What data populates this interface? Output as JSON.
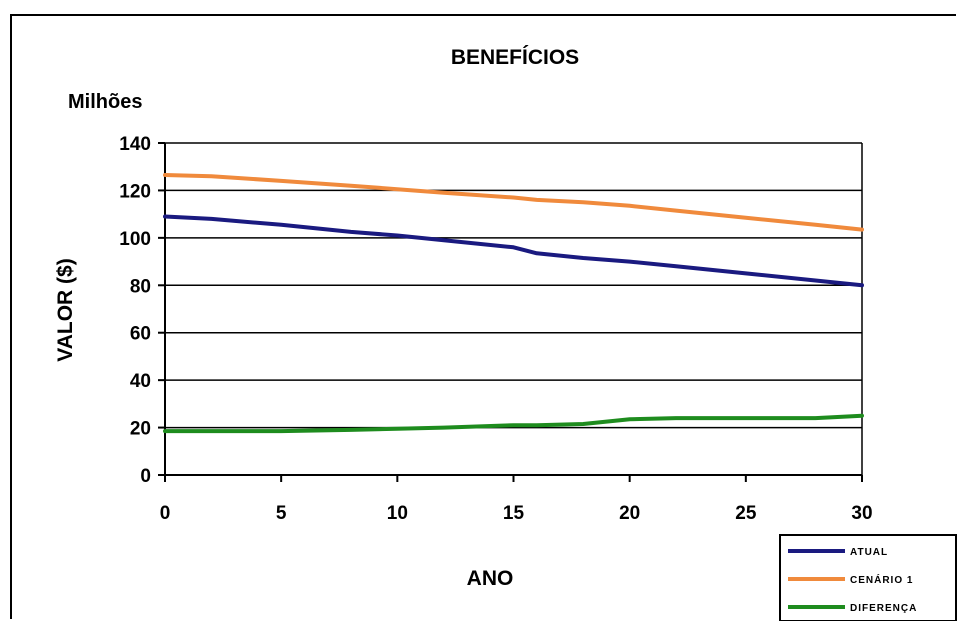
{
  "chart_data": {
    "type": "line",
    "title": "BENEFÍCIOS",
    "units_label": "Milhões",
    "xlabel": "ANO",
    "ylabel": "VALOR ($)",
    "xlim": [
      0,
      30
    ],
    "ylim": [
      0,
      140
    ],
    "x_ticks": [
      0,
      5,
      10,
      15,
      20,
      25,
      30
    ],
    "y_ticks": [
      0,
      20,
      40,
      60,
      80,
      100,
      120,
      140
    ],
    "grid": "horizontal",
    "legend_position": "bottom-right",
    "x": [
      0,
      2,
      5,
      8,
      10,
      12,
      15,
      16,
      18,
      20,
      22,
      25,
      28,
      30
    ],
    "series": [
      {
        "name": "ATUAL",
        "color": "#1a1a80",
        "values": [
          109,
          108,
          105.5,
          102.5,
          101,
          99,
          96,
          93.5,
          91.5,
          90,
          88,
          85,
          82,
          80
        ]
      },
      {
        "name": "CENÁRIO 1",
        "color": "#f08a3c",
        "values": [
          126.5,
          126,
          124,
          122,
          120.5,
          119,
          117,
          116,
          115,
          113.5,
          111.5,
          108.5,
          105.5,
          103.5
        ]
      },
      {
        "name": "DIFERENÇA",
        "color": "#1e8c1e",
        "values": [
          18.5,
          18.5,
          18.5,
          19,
          19.5,
          20,
          21,
          21,
          21.5,
          23.5,
          24,
          24,
          24,
          25
        ]
      }
    ]
  }
}
